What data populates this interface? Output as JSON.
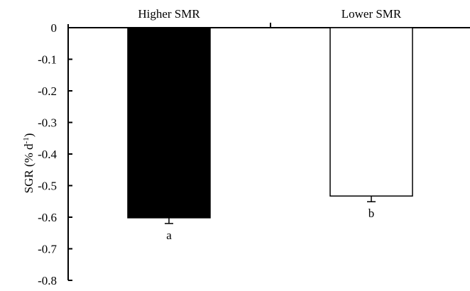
{
  "chart_data": {
    "type": "bar",
    "categories": [
      "Higher SMR",
      "Lower SMR"
    ],
    "values": [
      -0.602,
      -0.533
    ],
    "errors": [
      0.018,
      0.018
    ],
    "significance_labels": [
      "a",
      "b"
    ],
    "bar_colors": [
      "#000000",
      "#ffffff"
    ],
    "ylabel": "SGR (% d",
    "ylabel_superscript": "-1",
    "ylabel_suffix": ")",
    "ylim": [
      -0.8,
      0
    ],
    "yticks": [
      0,
      -0.1,
      -0.2,
      -0.3,
      -0.4,
      -0.5,
      -0.6,
      -0.7,
      -0.8
    ],
    "ytick_labels": [
      "0",
      "-0.1",
      "-0.2",
      "-0.3",
      "-0.4",
      "-0.5",
      "-0.6",
      "-0.7",
      "-0.8"
    ],
    "category_axis_position": "top",
    "grid": false,
    "legend": "none"
  }
}
